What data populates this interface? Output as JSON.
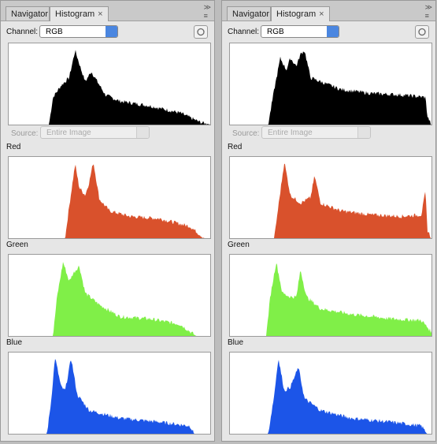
{
  "panels": [
    {
      "tabs": [
        "Navigator",
        "Histogram"
      ],
      "channel_label": "Channel:",
      "channel": "RGB",
      "source_label": "Source:",
      "source": "Entire Image",
      "channels": [
        "Red",
        "Green",
        "Blue"
      ]
    },
    {
      "tabs": [
        "Navigator",
        "Histogram"
      ],
      "channel_label": "Channel:",
      "channel": "RGB",
      "source_label": "Source:",
      "source": "Entire Image",
      "channels": [
        "Red",
        "Green",
        "Blue"
      ]
    }
  ]
}
